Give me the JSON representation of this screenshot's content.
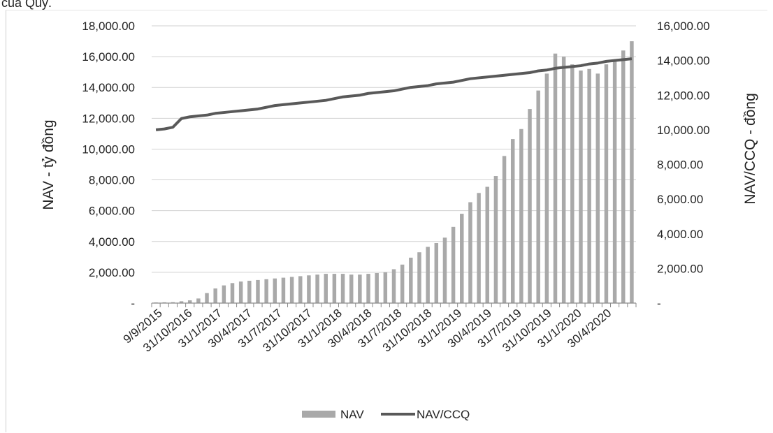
{
  "caption": "của Quỹ.",
  "chart_data": {
    "type": "bar+line",
    "ylabel_left": "NAV - tỷ đồng",
    "ylabel_right": "NAV/CCQ - đồng",
    "ylim_left": [
      0,
      18000
    ],
    "ylim_right": [
      0,
      16000
    ],
    "left_ticks": [
      "-",
      "2,000.00",
      "4,000.00",
      "6,000.00",
      "8,000.00",
      "10,000.00",
      "12,000.00",
      "14,000.00",
      "16,000.00",
      "18,000.00"
    ],
    "right_ticks": [
      "-",
      "2,000.00",
      "4,000.00",
      "6,000.00",
      "8,000.00",
      "10,000.00",
      "12,000.00",
      "14,000.00",
      "16,000.00"
    ],
    "x_tick_labels": [
      "9/9/2015",
      "31/10/2016",
      "31/1/2017",
      "30/4/2017",
      "31/7/2017",
      "31/10/2017",
      "31/1/2018",
      "30/4/2018",
      "31/7/2018",
      "31/10/2018",
      "31/1/2019",
      "30/4/2019",
      "31/7/2019",
      "31/10/2019",
      "31/1/2020",
      "30/4/2020"
    ],
    "grid": true,
    "legend_position": "bottom",
    "series": [
      {
        "name": "NAV",
        "type": "bar",
        "axis": "left",
        "color": "#a9a9a9",
        "values": [
          40,
          50,
          60,
          120,
          180,
          300,
          650,
          950,
          1150,
          1300,
          1400,
          1450,
          1500,
          1550,
          1600,
          1650,
          1700,
          1750,
          1800,
          1850,
          1900,
          1900,
          1900,
          1850,
          1850,
          1900,
          1950,
          2000,
          2200,
          2500,
          2950,
          3300,
          3650,
          3900,
          4250,
          4950,
          5800,
          6550,
          7150,
          7550,
          8250,
          9550,
          10650,
          11300,
          12600,
          13800,
          14900,
          16200,
          16000,
          15500,
          15100,
          15200,
          14900,
          15500,
          15800,
          16400,
          17000
        ]
      },
      {
        "name": "NAV/CCQ",
        "type": "line",
        "axis": "right",
        "color": "#595959",
        "values": [
          10000,
          10050,
          10150,
          10650,
          10750,
          10800,
          10850,
          10950,
          11000,
          11050,
          11100,
          11150,
          11200,
          11300,
          11400,
          11450,
          11500,
          11550,
          11600,
          11650,
          11700,
          11800,
          11900,
          11950,
          12000,
          12100,
          12150,
          12200,
          12250,
          12350,
          12450,
          12500,
          12550,
          12650,
          12700,
          12750,
          12850,
          12950,
          13000,
          13050,
          13100,
          13150,
          13200,
          13250,
          13300,
          13400,
          13450,
          13550,
          13600,
          13650,
          13700,
          13800,
          13850,
          13950,
          14000,
          14050,
          14100
        ]
      }
    ]
  }
}
